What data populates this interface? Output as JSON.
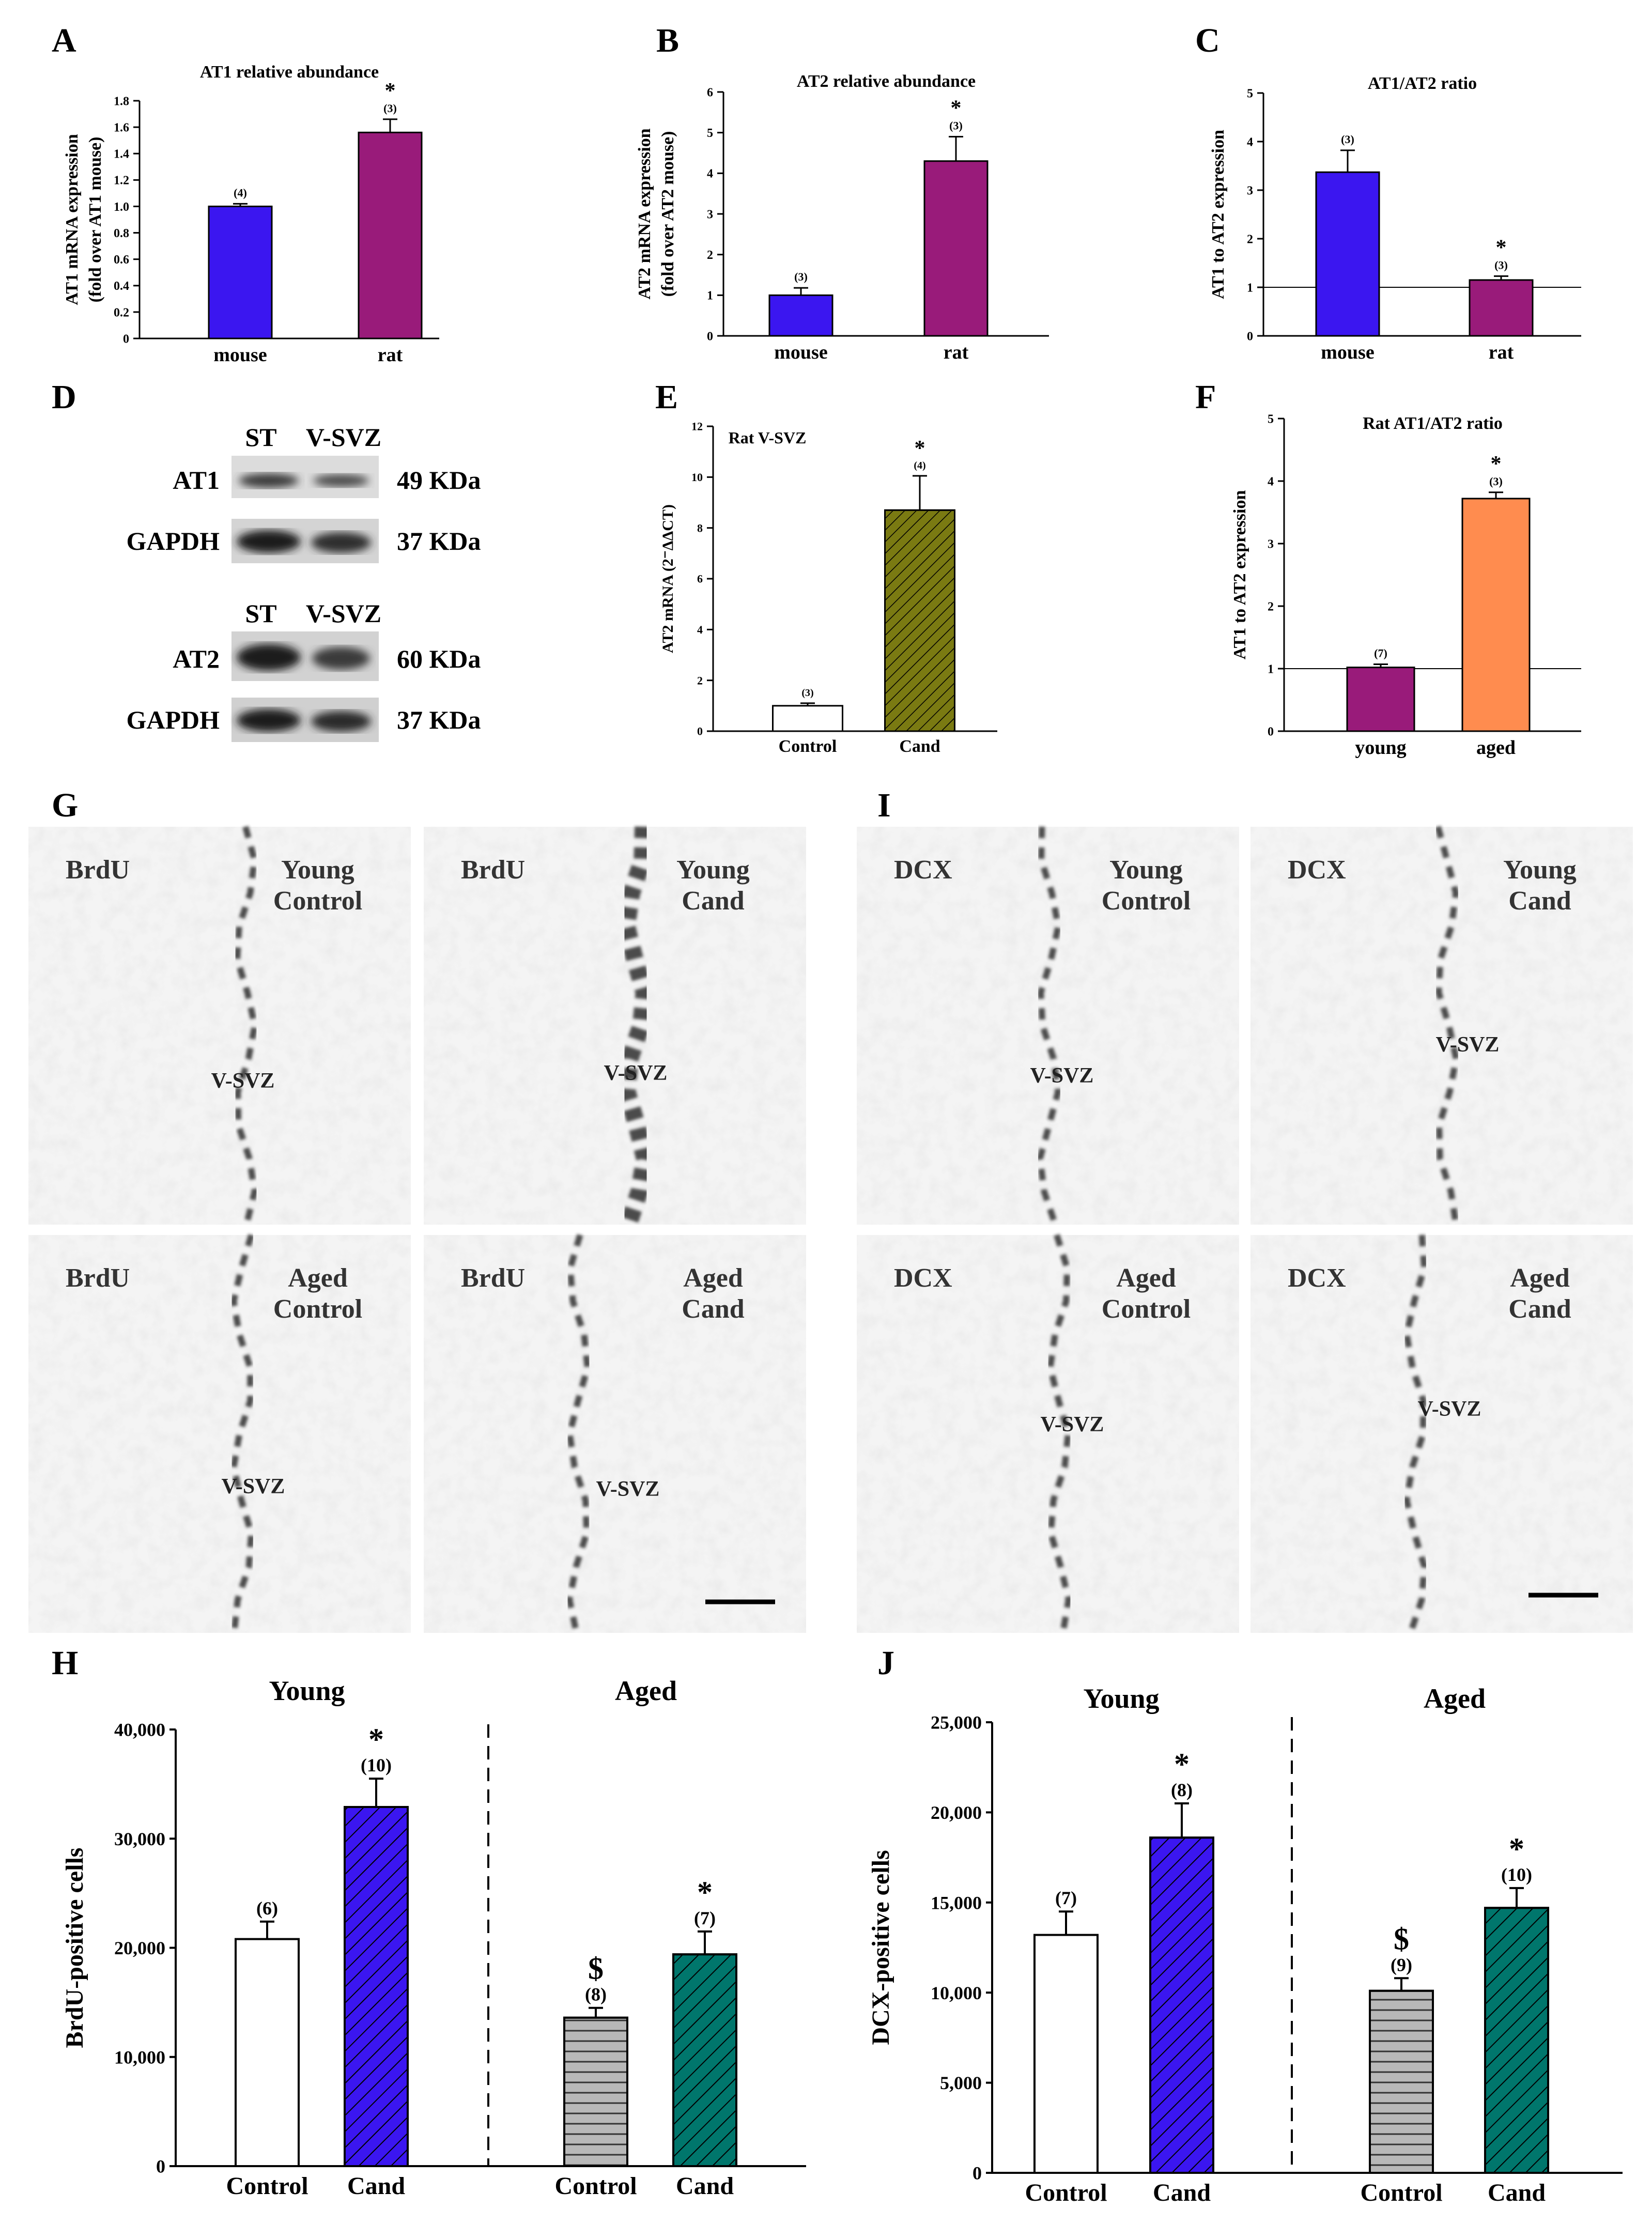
{
  "panel_letters": {
    "A": "A",
    "B": "B",
    "C": "C",
    "D": "D",
    "E": "E",
    "F": "F",
    "G": "G",
    "H": "H",
    "I": "I",
    "J": "J"
  },
  "colors": {
    "blue": "#3b16f0",
    "purple": "#991b7a",
    "olive": "#7a7a12",
    "orange": "#ff8c4f",
    "gray": "#b8b8b8",
    "teal": "#00766c",
    "white": "#ffffff"
  },
  "western_blot": {
    "col_headers": [
      "ST",
      "V-SVZ"
    ],
    "blot1": {
      "rows": [
        {
          "label": "AT1",
          "size": "49 KDa"
        },
        {
          "label": "GAPDH",
          "size": "37 KDa"
        }
      ]
    },
    "blot2": {
      "rows": [
        {
          "label": "AT2",
          "size": "60 KDa"
        },
        {
          "label": "GAPDH",
          "size": "37 KDa"
        }
      ]
    }
  },
  "micrographs": {
    "G": [
      {
        "stain": "BrdU",
        "group_line1": "Young",
        "group_line2": "Control",
        "region": "V-SVZ"
      },
      {
        "stain": "BrdU",
        "group_line1": "Young",
        "group_line2": "Cand",
        "region": "V-SVZ"
      },
      {
        "stain": "BrdU",
        "group_line1": "Aged",
        "group_line2": "Control",
        "region": "V-SVZ"
      },
      {
        "stain": "BrdU",
        "group_line1": "Aged",
        "group_line2": "Cand",
        "region": "V-SVZ"
      }
    ],
    "I": [
      {
        "stain": "DCX",
        "group_line1": "Young",
        "group_line2": "Control",
        "region": "V-SVZ"
      },
      {
        "stain": "DCX",
        "group_line1": "Young",
        "group_line2": "Cand",
        "region": "V-SVZ"
      },
      {
        "stain": "DCX",
        "group_line1": "Aged",
        "group_line2": "Control",
        "region": "V-SVZ"
      },
      {
        "stain": "DCX",
        "group_line1": "Aged",
        "group_line2": "Cand",
        "region": "V-SVZ"
      }
    ]
  },
  "chart_data": [
    {
      "id": "A",
      "type": "bar",
      "title": "AT1 relative abundance",
      "ylabel_line1": "AT1 mRNA expression",
      "ylabel_line2": "(fold over AT1 mouse)",
      "ylim": [
        0,
        1.8
      ],
      "yticks": [
        0,
        0.2,
        0.4,
        0.6,
        0.8,
        1.0,
        1.2,
        1.4,
        1.6,
        1.8
      ],
      "ytick_labels": [
        "0",
        "0.2",
        "0.4",
        "0.6",
        "0.8",
        "1.0",
        "1.2",
        "1.4",
        "1.6",
        "1.8"
      ],
      "categories": [
        "mouse",
        "rat"
      ],
      "values": [
        1.0,
        1.56
      ],
      "errors": [
        0.02,
        0.1
      ],
      "n_labels": [
        "(4)",
        "(3)"
      ],
      "marks": [
        "",
        "*"
      ],
      "fills": [
        "blue",
        "purple"
      ],
      "hatch": [
        false,
        false
      ],
      "refline": null
    },
    {
      "id": "B",
      "type": "bar",
      "title": "AT2 relative abundance",
      "ylabel_line1": "AT2 mRNA expression",
      "ylabel_line2": "(fold over AT2 mouse)",
      "ylim": [
        0,
        6
      ],
      "yticks": [
        0,
        1,
        2,
        3,
        4,
        5,
        6
      ],
      "ytick_labels": [
        "0",
        "1",
        "2",
        "3",
        "4",
        "5",
        "6"
      ],
      "categories": [
        "mouse",
        "rat"
      ],
      "values": [
        1.0,
        4.3
      ],
      "errors": [
        0.18,
        0.6
      ],
      "n_labels": [
        "(3)",
        "(3)"
      ],
      "marks": [
        "",
        "*"
      ],
      "fills": [
        "blue",
        "purple"
      ],
      "hatch": [
        false,
        false
      ],
      "refline": null
    },
    {
      "id": "C",
      "type": "bar",
      "title": "AT1/AT2 ratio",
      "ylabel_line1": "AT1 to AT2 expression",
      "ylabel_line2": "",
      "ylim": [
        0,
        5
      ],
      "yticks": [
        0,
        1,
        2,
        3,
        4,
        5
      ],
      "ytick_labels": [
        "0",
        "1",
        "2",
        "3",
        "4",
        "5"
      ],
      "categories": [
        "mouse",
        "rat"
      ],
      "values": [
        3.37,
        1.15
      ],
      "errors": [
        0.45,
        0.08
      ],
      "n_labels": [
        "(3)",
        "(3)"
      ],
      "marks": [
        "",
        "*"
      ],
      "fills": [
        "blue",
        "purple"
      ],
      "hatch": [
        false,
        false
      ],
      "refline": 1
    },
    {
      "id": "E",
      "type": "bar",
      "title": "Rat V-SVZ",
      "ylabel_line1": "AT2 mRNA (2⁻ΔΔCT)",
      "ylabel_line2": "",
      "ylim": [
        0,
        12
      ],
      "yticks": [
        0,
        2,
        4,
        6,
        8,
        10,
        12
      ],
      "ytick_labels": [
        "0",
        "2",
        "4",
        "6",
        "8",
        "10",
        "12"
      ],
      "categories": [
        "Control",
        "Cand"
      ],
      "values": [
        1.0,
        8.7
      ],
      "errors": [
        0.1,
        1.35
      ],
      "n_labels": [
        "(3)",
        "(4)"
      ],
      "marks": [
        "",
        "*"
      ],
      "fills": [
        "white",
        "olive"
      ],
      "hatch": [
        false,
        true
      ],
      "refline": null
    },
    {
      "id": "F",
      "type": "bar",
      "title": "Rat AT1/AT2 ratio",
      "ylabel_line1": "AT1 to AT2 expression",
      "ylabel_line2": "",
      "ylim": [
        0,
        5
      ],
      "yticks": [
        0,
        1,
        2,
        3,
        4,
        5
      ],
      "ytick_labels": [
        "0",
        "1",
        "2",
        "3",
        "4",
        "5"
      ],
      "categories": [
        "young",
        "aged"
      ],
      "values": [
        1.02,
        3.72
      ],
      "errors": [
        0.05,
        0.1
      ],
      "n_labels": [
        "(7)",
        "(3)"
      ],
      "marks": [
        "",
        "*"
      ],
      "fills": [
        "purple",
        "orange"
      ],
      "hatch": [
        false,
        false
      ],
      "refline": 1
    },
    {
      "id": "H",
      "type": "bar",
      "title": "",
      "ylabel_line1": "BrdU-positive cells",
      "ylabel_line2": "",
      "ylim": [
        0,
        40000
      ],
      "yticks": [
        0,
        10000,
        20000,
        30000,
        40000
      ],
      "ytick_labels": [
        "0",
        "10,000",
        "20,000",
        "30,000",
        "40,000"
      ],
      "groups": [
        "Young",
        "Aged"
      ],
      "categories": [
        "Control",
        "Cand",
        "Control",
        "Cand"
      ],
      "values": [
        20800,
        32900,
        13600,
        19400
      ],
      "errors": [
        1600,
        2600,
        900,
        2100
      ],
      "n_labels": [
        "(6)",
        "(10)",
        "(8)",
        "(7)"
      ],
      "marks": [
        "",
        "*",
        "$",
        "*"
      ],
      "fills": [
        "white",
        "blue",
        "gray",
        "teal"
      ],
      "hatch_type": [
        "none",
        "diag",
        "horiz",
        "diag"
      ],
      "refline": null
    },
    {
      "id": "J",
      "type": "bar",
      "title": "",
      "ylabel_line1": "DCX-positive cells",
      "ylabel_line2": "",
      "ylim": [
        0,
        25000
      ],
      "yticks": [
        0,
        5000,
        10000,
        15000,
        20000,
        25000
      ],
      "ytick_labels": [
        "0",
        "5,000",
        "10,000",
        "15,000",
        "20,000",
        "25,000"
      ],
      "groups": [
        "Young",
        "Aged"
      ],
      "categories": [
        "Control",
        "Cand",
        "Control",
        "Cand"
      ],
      "values": [
        13200,
        18600,
        10100,
        14700
      ],
      "errors": [
        1300,
        1900,
        700,
        1100
      ],
      "n_labels": [
        "(7)",
        "(8)",
        "(9)",
        "(10)"
      ],
      "marks": [
        "",
        "*",
        "$",
        "*"
      ],
      "fills": [
        "white",
        "blue",
        "gray",
        "teal"
      ],
      "hatch_type": [
        "none",
        "diag",
        "horiz",
        "diag"
      ],
      "refline": null
    }
  ]
}
